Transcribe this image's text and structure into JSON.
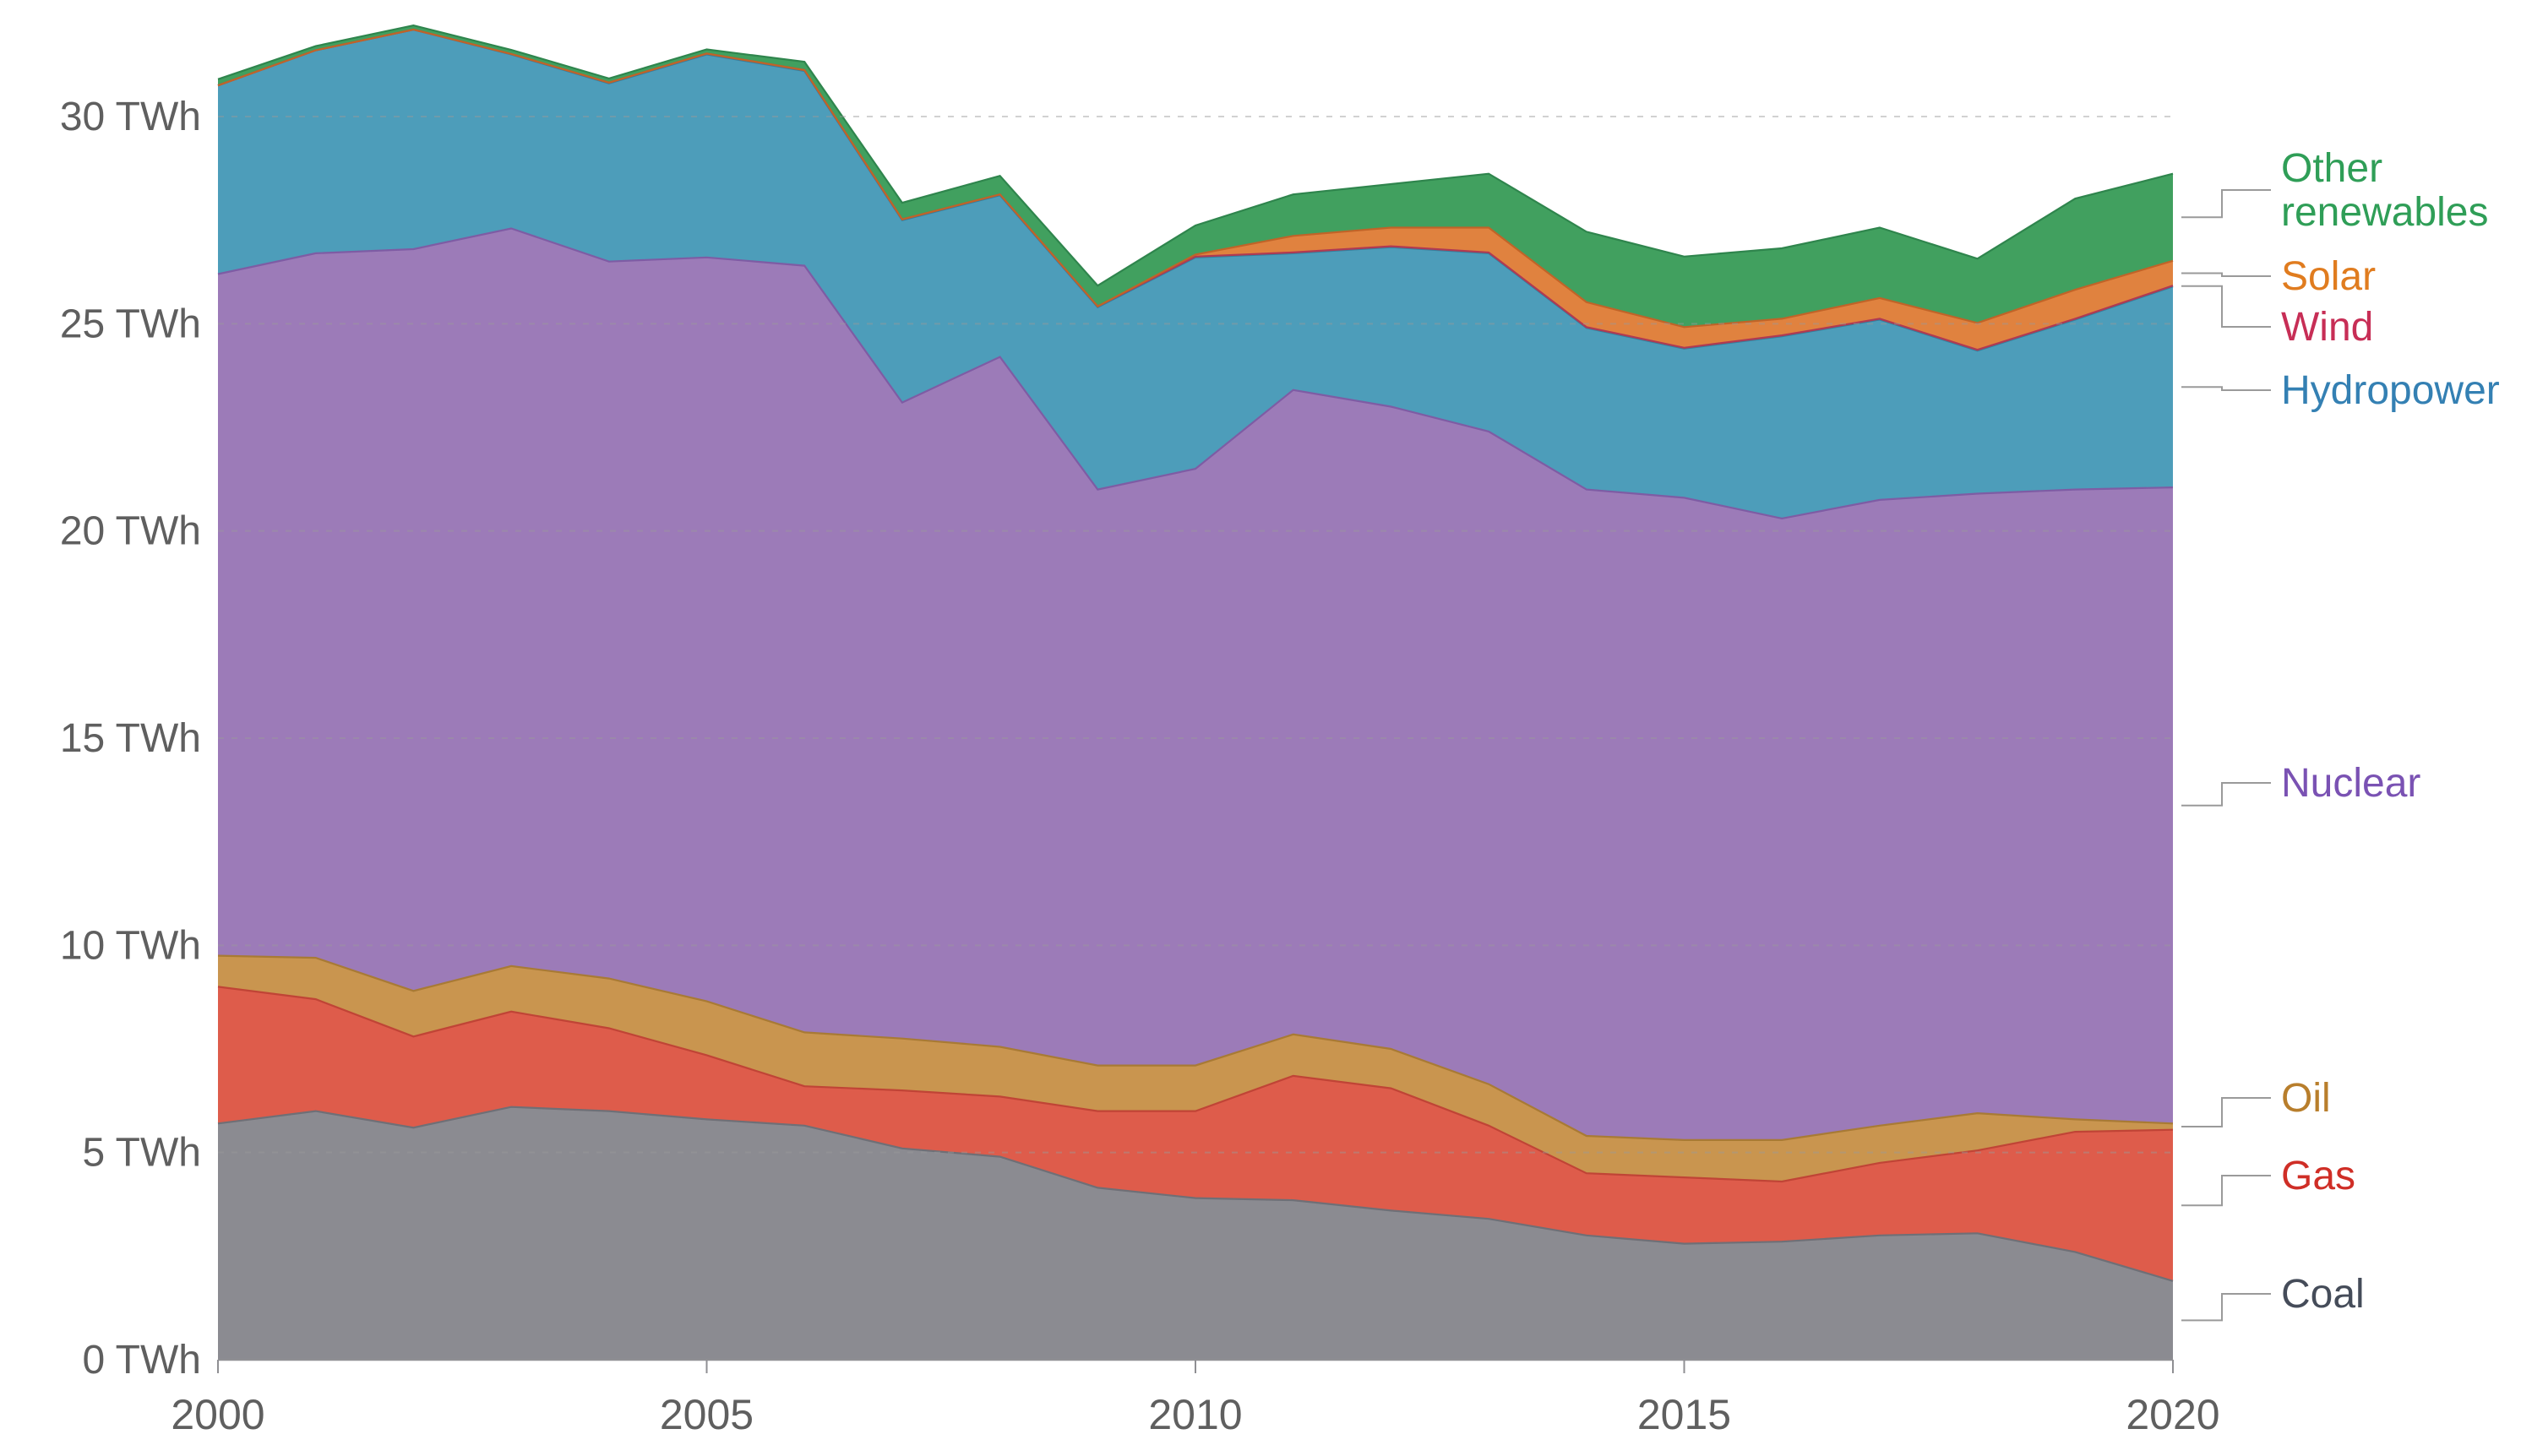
{
  "unit": "TWh",
  "chart_data": {
    "type": "area",
    "stacked": true,
    "title": "",
    "xlabel": "",
    "ylabel": "TWh",
    "grid": "dashed-horizontal",
    "legend_position": "right",
    "ylim": [
      0,
      32.5
    ],
    "x": [
      2000,
      2001,
      2002,
      2003,
      2004,
      2005,
      2006,
      2007,
      2008,
      2009,
      2010,
      2011,
      2012,
      2013,
      2014,
      2015,
      2016,
      2017,
      2018,
      2019,
      2020
    ],
    "xticks": [
      {
        "value": 2000,
        "label": "2000"
      },
      {
        "value": 2005,
        "label": "2005"
      },
      {
        "value": 2010,
        "label": "2010"
      },
      {
        "value": 2015,
        "label": "2015"
      },
      {
        "value": 2020,
        "label": "2020"
      }
    ],
    "yticks": [
      {
        "value": 0,
        "label": "0 TWh"
      },
      {
        "value": 5,
        "label": "5 TWh"
      },
      {
        "value": 10,
        "label": "10 TWh"
      },
      {
        "value": 15,
        "label": "15 TWh"
      },
      {
        "value": 20,
        "label": "20 TWh"
      },
      {
        "value": 25,
        "label": "25 TWh"
      },
      {
        "value": 30,
        "label": "30 TWh"
      }
    ],
    "series": [
      {
        "name": "coal",
        "legend_lines": [
          "Coal"
        ],
        "color": "#8b8b91",
        "edge_color": "#6f6f76",
        "label_color": "#454c59",
        "values": [
          5.7,
          6.0,
          5.6,
          6.1,
          6.0,
          5.8,
          5.65,
          5.1,
          4.9,
          4.15,
          3.9,
          3.85,
          3.6,
          3.4,
          3.0,
          2.8,
          2.85,
          3.0,
          3.05,
          2.6,
          1.9
        ]
      },
      {
        "name": "gas",
        "legend_lines": [
          "Gas"
        ],
        "color": "#de5c4b",
        "edge_color": "#c04436",
        "label_color": "#cf2e26",
        "values": [
          3.3,
          2.7,
          2.2,
          2.3,
          2.0,
          1.55,
          0.95,
          1.4,
          1.45,
          1.85,
          2.1,
          3.0,
          2.95,
          2.25,
          1.5,
          1.6,
          1.45,
          1.75,
          2.0,
          2.9,
          3.65
        ]
      },
      {
        "name": "oil",
        "legend_lines": [
          "Oil"
        ],
        "color": "#c9954f",
        "edge_color": "#a87a35",
        "label_color": "#b87e2c",
        "values": [
          0.75,
          1.0,
          1.1,
          1.1,
          1.2,
          1.3,
          1.3,
          1.25,
          1.2,
          1.1,
          1.1,
          1.0,
          0.95,
          1.0,
          0.9,
          0.9,
          1.0,
          0.9,
          0.9,
          0.3,
          0.15
        ]
      },
      {
        "name": "nuclear",
        "legend_lines": [
          "Nuclear"
        ],
        "color": "#9c7bb8",
        "edge_color": "#7e5ca4",
        "label_color": "#7a52b3",
        "values": [
          16.45,
          17.0,
          17.9,
          17.8,
          17.3,
          17.95,
          18.5,
          15.35,
          16.65,
          13.9,
          14.4,
          15.55,
          15.5,
          15.75,
          15.6,
          15.5,
          15.0,
          15.1,
          14.95,
          15.2,
          15.35
        ]
      },
      {
        "name": "hydropower",
        "legend_lines": [
          "Hydropower"
        ],
        "color": "#4d9dba",
        "edge_color": "#357f9e",
        "label_color": "#3480b3",
        "values": [
          4.55,
          4.9,
          5.3,
          4.2,
          4.3,
          4.9,
          4.7,
          4.4,
          3.9,
          4.4,
          5.1,
          3.3,
          3.85,
          4.3,
          3.9,
          3.6,
          4.4,
          4.35,
          3.45,
          4.1,
          4.85
        ]
      },
      {
        "name": "wind",
        "legend_lines": [
          "Wind"
        ],
        "color": "#c34a62",
        "edge_color": "#b03a52",
        "label_color": "#c72e56",
        "values": [
          0,
          0,
          0,
          0.01,
          0.02,
          0.02,
          0.02,
          0.02,
          0.02,
          0.02,
          0.02,
          0.02,
          0.02,
          0.02,
          0.02,
          0.02,
          0.02,
          0.02,
          0.02,
          0.02,
          0.02
        ]
      },
      {
        "name": "solar",
        "legend_lines": [
          "Solar"
        ],
        "color": "#e0823f",
        "edge_color": "#c06428",
        "label_color": "#e07c1f",
        "values": [
          0,
          0,
          0,
          0,
          0,
          0,
          0,
          0,
          0,
          0,
          0.05,
          0.4,
          0.45,
          0.6,
          0.6,
          0.5,
          0.4,
          0.5,
          0.65,
          0.7,
          0.6
        ]
      },
      {
        "name": "other_renewables",
        "legend_lines": [
          "Other",
          "renewables"
        ],
        "color": "#41a05f",
        "edge_color": "#2f854d",
        "label_color": "#2f9e57",
        "values": [
          0.15,
          0.1,
          0.1,
          0.1,
          0.1,
          0.1,
          0.2,
          0.4,
          0.45,
          0.5,
          0.7,
          1.0,
          1.05,
          1.3,
          1.7,
          1.7,
          1.7,
          1.7,
          1.55,
          2.2,
          2.1
        ]
      }
    ]
  },
  "colors": {
    "axis_text": "#5f5f5f",
    "axis_line": "#8f8f93",
    "gridline": "#9a9a9a",
    "legend_connector": "#9a9a9a",
    "background": "#ffffff"
  }
}
